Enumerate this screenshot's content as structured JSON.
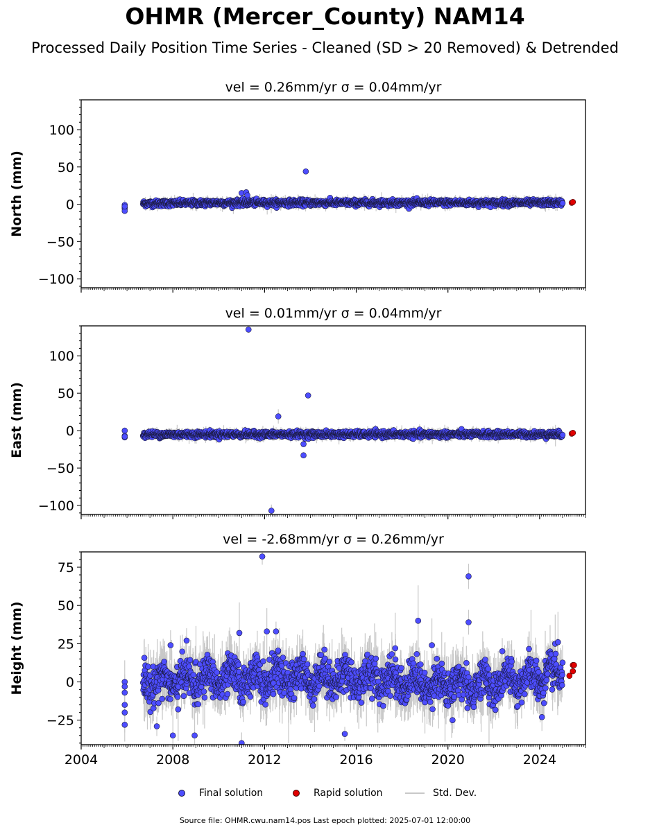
{
  "page": {
    "title": "OHMR (Mercer_County) NAM14",
    "subtitle": "Processed Daily Position Time Series - Cleaned (SD > 20 Removed) & Detrended",
    "source": "Source file: OHMR.cwu.nam14.pos  Last epoch plotted: 2025-07-01 12:00:00"
  },
  "legend": {
    "final": "Final solution",
    "rapid": "Rapid solution",
    "stddev": "Std. Dev."
  },
  "colors": {
    "final": "#4d4dff",
    "final_edge": "#1a1a40",
    "rapid": "#e00000",
    "stddev": "#c8c8c8"
  },
  "chart_data": [
    {
      "type": "scatter",
      "panel": "north",
      "title": "vel = 0.26mm/yr   σ = 0.04mm/yr",
      "ylabel": "North (mm)",
      "xlim": [
        2004,
        2026
      ],
      "ylim": [
        -112,
        140
      ],
      "yticks": [
        -100,
        -50,
        0,
        50,
        100
      ],
      "ytick_labels": [
        "−100",
        "−50",
        "0",
        "50",
        100
      ],
      "xticks": [
        2004,
        2008,
        2012,
        2016,
        2020,
        2024
      ],
      "data_start": 2006.7,
      "data_end": 2025.0,
      "scatter_sd": 2.0,
      "err_scale": 3,
      "baseline": [
        [
          2006.7,
          1
        ],
        [
          2010,
          2
        ],
        [
          2015,
          2
        ],
        [
          2020,
          2
        ],
        [
          2025,
          2
        ]
      ],
      "early_points": [
        [
          2005.9,
          -1
        ],
        [
          2005.9,
          -4
        ],
        [
          2005.9,
          -6
        ],
        [
          2005.9,
          -9
        ],
        [
          2005.9,
          -3
        ]
      ],
      "outliers": [
        [
          2011.0,
          15
        ],
        [
          2011.2,
          16
        ],
        [
          2011.25,
          12
        ],
        [
          2013.8,
          44
        ]
      ],
      "rapid_points": [
        [
          2025.4,
          2
        ],
        [
          2025.45,
          3
        ]
      ]
    },
    {
      "type": "scatter",
      "panel": "east",
      "title": "vel = 0.01mm/yr   σ = 0.04mm/yr",
      "ylabel": "East (mm)",
      "xlim": [
        2004,
        2026
      ],
      "ylim": [
        -112,
        140
      ],
      "yticks": [
        -100,
        -50,
        0,
        50,
        100
      ],
      "ytick_labels": [
        "−100",
        "−50",
        "0",
        "50",
        100
      ],
      "xticks": [
        2004,
        2008,
        2012,
        2016,
        2020,
        2024
      ],
      "data_start": 2006.7,
      "data_end": 2025.0,
      "scatter_sd": 2.0,
      "err_scale": 3,
      "baseline": [
        [
          2006.7,
          -5
        ],
        [
          2015,
          -5
        ],
        [
          2025,
          -5
        ]
      ],
      "early_points": [
        [
          2005.9,
          0
        ],
        [
          2005.9,
          -7
        ],
        [
          2005.9,
          -9
        ],
        [
          2005.9,
          -8
        ]
      ],
      "outliers": [
        [
          2011.3,
          135
        ],
        [
          2012.3,
          -107
        ],
        [
          2012.6,
          19
        ],
        [
          2013.7,
          -18
        ],
        [
          2013.7,
          -33
        ],
        [
          2013.9,
          47
        ]
      ],
      "rapid_points": [
        [
          2025.4,
          -4
        ],
        [
          2025.45,
          -3
        ]
      ]
    },
    {
      "type": "scatter",
      "panel": "height",
      "title": "vel = -2.68mm/yr   σ = 0.26mm/yr",
      "ylabel": "Height (mm)",
      "xlim": [
        2004,
        2026
      ],
      "ylim": [
        -41,
        85
      ],
      "yticks": [
        -25,
        0,
        25,
        50,
        75
      ],
      "ytick_labels": [
        "−25",
        "0",
        "25",
        "50",
        "75"
      ],
      "xticks": [
        2004,
        2008,
        2012,
        2016,
        2020,
        2024
      ],
      "data_start": 2006.7,
      "data_end": 2025.0,
      "scatter_sd": 6.0,
      "err_scale": 8,
      "baseline": [
        [
          2006.7,
          0
        ],
        [
          2010,
          2
        ],
        [
          2014,
          3
        ],
        [
          2017,
          2
        ],
        [
          2020,
          -2
        ],
        [
          2022,
          -1
        ],
        [
          2025,
          5
        ]
      ],
      "early_points": [
        [
          2005.9,
          0
        ],
        [
          2005.9,
          -3
        ],
        [
          2005.9,
          -7
        ],
        [
          2005.9,
          -15
        ],
        [
          2005.9,
          -20
        ],
        [
          2005.9,
          -28
        ]
      ],
      "outliers": [
        [
          2007.3,
          -29
        ],
        [
          2007.9,
          24
        ],
        [
          2008.6,
          27
        ],
        [
          2008.0,
          -35
        ],
        [
          2008.95,
          -35
        ],
        [
          2011.0,
          -40
        ],
        [
          2010.9,
          32
        ],
        [
          2011.9,
          82
        ],
        [
          2012.1,
          33
        ],
        [
          2012.5,
          33
        ],
        [
          2017.7,
          22
        ],
        [
          2015.5,
          -34
        ],
        [
          2018.7,
          40
        ],
        [
          2019.3,
          24
        ],
        [
          2020.9,
          69
        ],
        [
          2020.9,
          39
        ],
        [
          2020.2,
          -25
        ],
        [
          2024.1,
          -23
        ],
        [
          2024.8,
          26
        ]
      ],
      "rapid_points": [
        [
          2025.3,
          4
        ],
        [
          2025.45,
          7
        ],
        [
          2025.45,
          11
        ],
        [
          2025.5,
          11
        ]
      ]
    }
  ]
}
